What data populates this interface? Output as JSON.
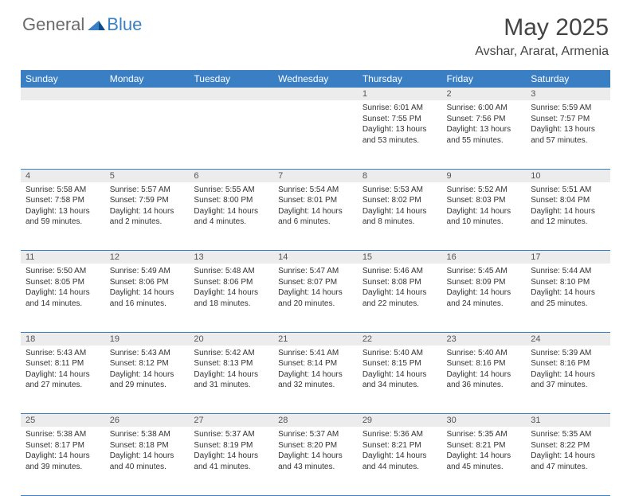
{
  "brand": {
    "general": "General",
    "blue": "Blue"
  },
  "title": "May 2025",
  "location": "Avshar, Ararat, Armenia",
  "headers": [
    "Sunday",
    "Monday",
    "Tuesday",
    "Wednesday",
    "Thursday",
    "Friday",
    "Saturday"
  ],
  "colors": {
    "header_bg": "#3a7fc4",
    "header_fg": "#ffffff",
    "daynum_bg": "#ececec",
    "rule": "#3a7fc4",
    "logo_gray": "#6b6b6b",
    "logo_blue": "#3a7fc4"
  },
  "firstDayOffset": 4,
  "daysInMonth": 31,
  "days": {
    "1": {
      "sunrise": "6:01 AM",
      "sunset": "7:55 PM",
      "daylight": "13 hours and 53 minutes."
    },
    "2": {
      "sunrise": "6:00 AM",
      "sunset": "7:56 PM",
      "daylight": "13 hours and 55 minutes."
    },
    "3": {
      "sunrise": "5:59 AM",
      "sunset": "7:57 PM",
      "daylight": "13 hours and 57 minutes."
    },
    "4": {
      "sunrise": "5:58 AM",
      "sunset": "7:58 PM",
      "daylight": "13 hours and 59 minutes."
    },
    "5": {
      "sunrise": "5:57 AM",
      "sunset": "7:59 PM",
      "daylight": "14 hours and 2 minutes."
    },
    "6": {
      "sunrise": "5:55 AM",
      "sunset": "8:00 PM",
      "daylight": "14 hours and 4 minutes."
    },
    "7": {
      "sunrise": "5:54 AM",
      "sunset": "8:01 PM",
      "daylight": "14 hours and 6 minutes."
    },
    "8": {
      "sunrise": "5:53 AM",
      "sunset": "8:02 PM",
      "daylight": "14 hours and 8 minutes."
    },
    "9": {
      "sunrise": "5:52 AM",
      "sunset": "8:03 PM",
      "daylight": "14 hours and 10 minutes."
    },
    "10": {
      "sunrise": "5:51 AM",
      "sunset": "8:04 PM",
      "daylight": "14 hours and 12 minutes."
    },
    "11": {
      "sunrise": "5:50 AM",
      "sunset": "8:05 PM",
      "daylight": "14 hours and 14 minutes."
    },
    "12": {
      "sunrise": "5:49 AM",
      "sunset": "8:06 PM",
      "daylight": "14 hours and 16 minutes."
    },
    "13": {
      "sunrise": "5:48 AM",
      "sunset": "8:06 PM",
      "daylight": "14 hours and 18 minutes."
    },
    "14": {
      "sunrise": "5:47 AM",
      "sunset": "8:07 PM",
      "daylight": "14 hours and 20 minutes."
    },
    "15": {
      "sunrise": "5:46 AM",
      "sunset": "8:08 PM",
      "daylight": "14 hours and 22 minutes."
    },
    "16": {
      "sunrise": "5:45 AM",
      "sunset": "8:09 PM",
      "daylight": "14 hours and 24 minutes."
    },
    "17": {
      "sunrise": "5:44 AM",
      "sunset": "8:10 PM",
      "daylight": "14 hours and 25 minutes."
    },
    "18": {
      "sunrise": "5:43 AM",
      "sunset": "8:11 PM",
      "daylight": "14 hours and 27 minutes."
    },
    "19": {
      "sunrise": "5:43 AM",
      "sunset": "8:12 PM",
      "daylight": "14 hours and 29 minutes."
    },
    "20": {
      "sunrise": "5:42 AM",
      "sunset": "8:13 PM",
      "daylight": "14 hours and 31 minutes."
    },
    "21": {
      "sunrise": "5:41 AM",
      "sunset": "8:14 PM",
      "daylight": "14 hours and 32 minutes."
    },
    "22": {
      "sunrise": "5:40 AM",
      "sunset": "8:15 PM",
      "daylight": "14 hours and 34 minutes."
    },
    "23": {
      "sunrise": "5:40 AM",
      "sunset": "8:16 PM",
      "daylight": "14 hours and 36 minutes."
    },
    "24": {
      "sunrise": "5:39 AM",
      "sunset": "8:16 PM",
      "daylight": "14 hours and 37 minutes."
    },
    "25": {
      "sunrise": "5:38 AM",
      "sunset": "8:17 PM",
      "daylight": "14 hours and 39 minutes."
    },
    "26": {
      "sunrise": "5:38 AM",
      "sunset": "8:18 PM",
      "daylight": "14 hours and 40 minutes."
    },
    "27": {
      "sunrise": "5:37 AM",
      "sunset": "8:19 PM",
      "daylight": "14 hours and 41 minutes."
    },
    "28": {
      "sunrise": "5:37 AM",
      "sunset": "8:20 PM",
      "daylight": "14 hours and 43 minutes."
    },
    "29": {
      "sunrise": "5:36 AM",
      "sunset": "8:21 PM",
      "daylight": "14 hours and 44 minutes."
    },
    "30": {
      "sunrise": "5:35 AM",
      "sunset": "8:21 PM",
      "daylight": "14 hours and 45 minutes."
    },
    "31": {
      "sunrise": "5:35 AM",
      "sunset": "8:22 PM",
      "daylight": "14 hours and 47 minutes."
    }
  },
  "labels": {
    "sunrise": "Sunrise:",
    "sunset": "Sunset:",
    "daylight": "Daylight:"
  }
}
